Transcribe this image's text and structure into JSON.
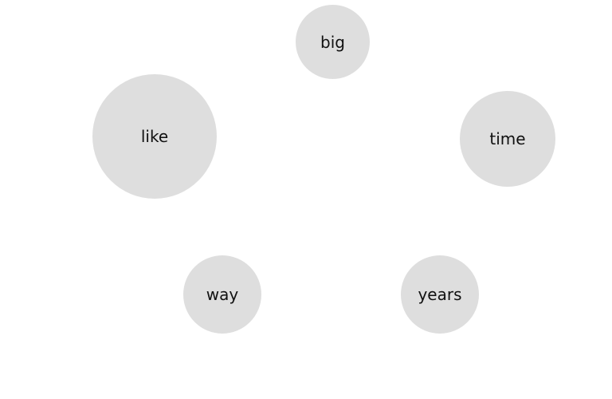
{
  "colors": {
    "background": "#ffffff",
    "bubble_fill": "#dedede",
    "text": "#111111"
  },
  "bubbles": [
    {
      "id": "big",
      "label": "big"
    },
    {
      "id": "like",
      "label": "like"
    },
    {
      "id": "time",
      "label": "time"
    },
    {
      "id": "way",
      "label": "way"
    },
    {
      "id": "years",
      "label": "years"
    }
  ]
}
